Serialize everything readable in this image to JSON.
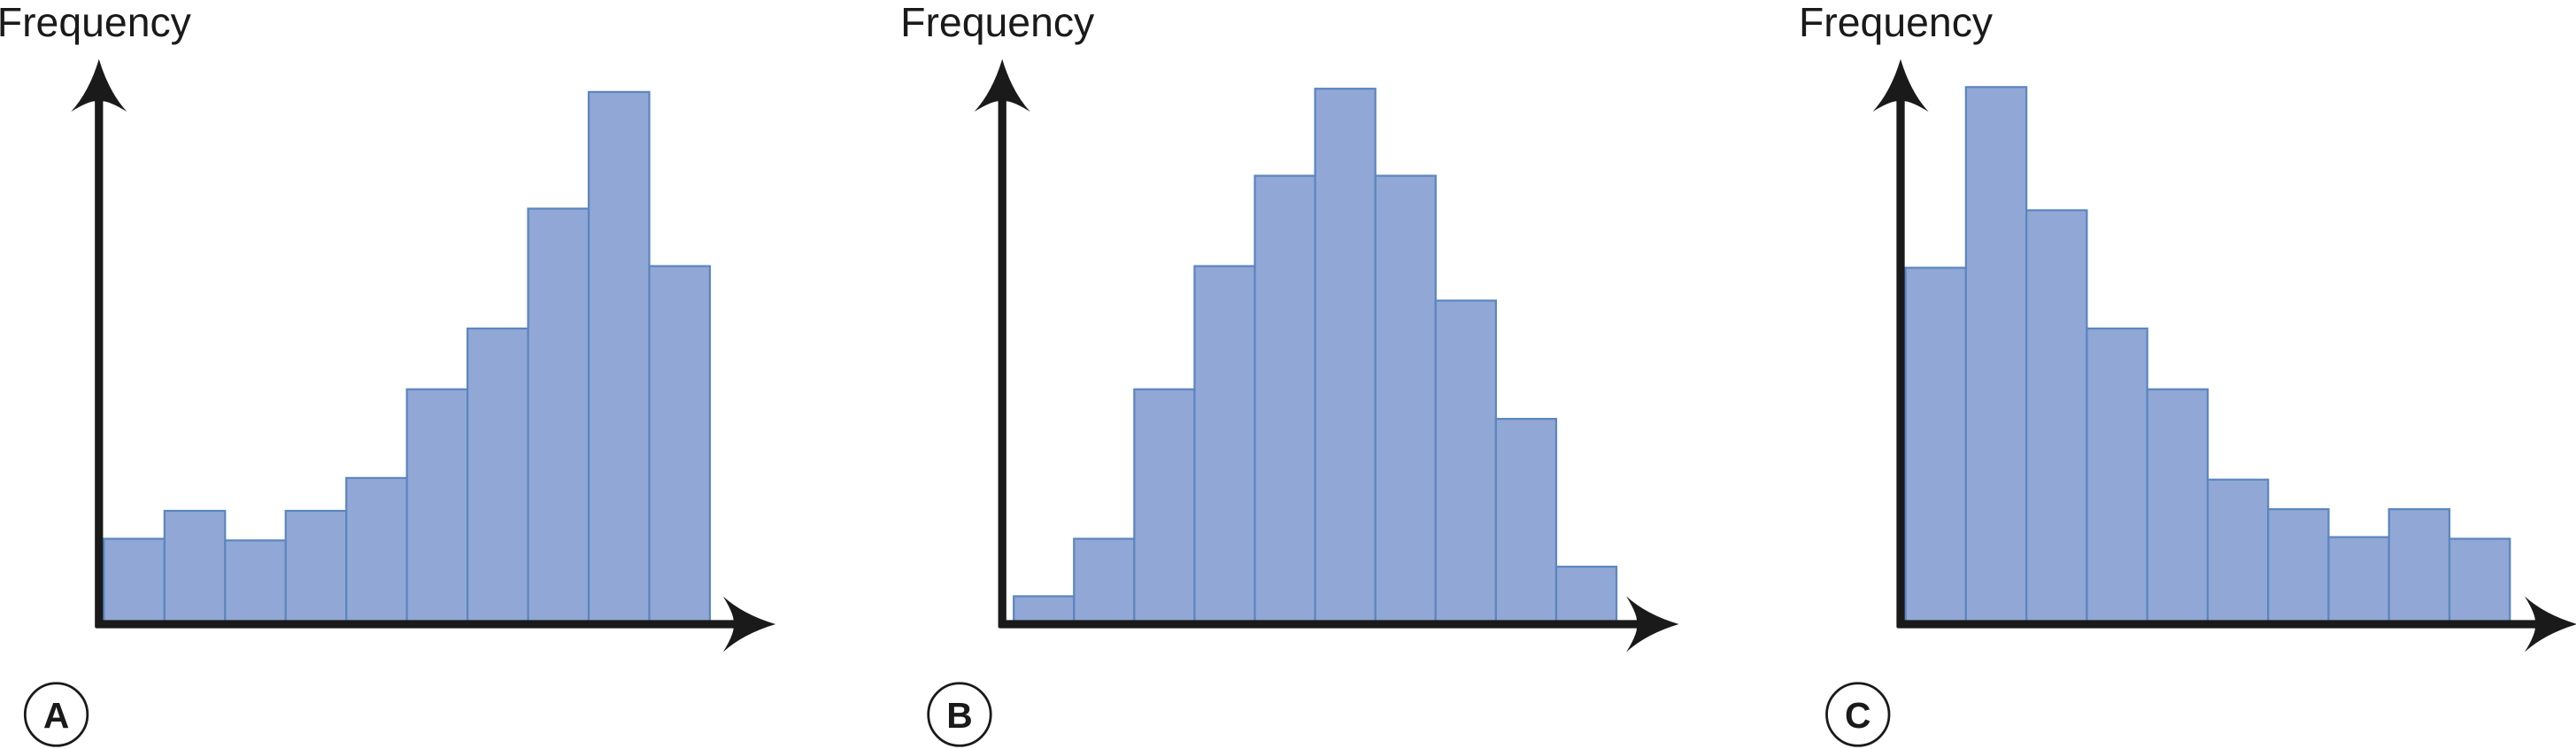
{
  "chart_data": [
    {
      "type": "bar",
      "ylabel": "Frequency",
      "panel_label": "A",
      "color": "#91a7d5",
      "values": [
        52,
        69,
        51,
        69,
        89,
        143,
        180,
        253,
        324,
        218
      ]
    },
    {
      "type": "bar",
      "ylabel": "Frequency",
      "panel_label": "B",
      "color": "#91a7d5",
      "values": [
        17,
        52,
        143,
        218,
        273,
        326,
        273,
        197,
        125,
        35
      ]
    },
    {
      "type": "bar",
      "ylabel": "Frequency",
      "panel_label": "C",
      "color": "#91a7d5",
      "values": [
        217,
        327,
        252,
        180,
        143,
        88,
        70,
        53,
        70,
        52
      ]
    }
  ]
}
